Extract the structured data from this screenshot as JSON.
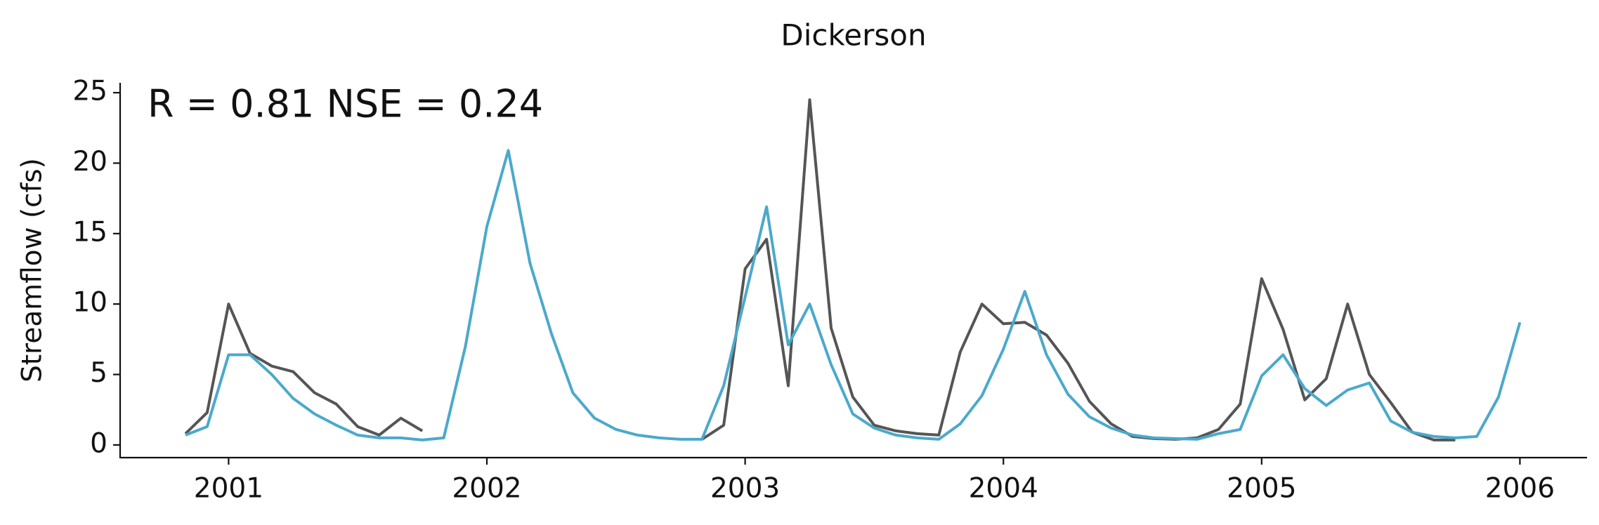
{
  "chart_data": {
    "type": "line",
    "title": "Dickerson",
    "ylabel": "Streamflow (cfs)",
    "annotation": "R = 0.81  NSE = 0.24",
    "x": [
      2000.833,
      2000.917,
      2001.0,
      2001.083,
      2001.167,
      2001.25,
      2001.333,
      2001.417,
      2001.5,
      2001.583,
      2001.667,
      2001.75,
      2001.833,
      2001.917,
      2002.0,
      2002.083,
      2002.167,
      2002.25,
      2002.333,
      2002.417,
      2002.5,
      2002.583,
      2002.667,
      2002.75,
      2002.833,
      2002.917,
      2003.0,
      2003.083,
      2003.167,
      2003.25,
      2003.333,
      2003.417,
      2003.5,
      2003.583,
      2003.667,
      2003.75,
      2003.833,
      2003.917,
      2004.0,
      2004.083,
      2004.167,
      2004.25,
      2004.333,
      2004.417,
      2004.5,
      2004.583,
      2004.667,
      2004.75,
      2004.833,
      2004.917,
      2005.0,
      2005.083,
      2005.167,
      2005.25,
      2005.333,
      2005.417,
      2005.5,
      2005.583,
      2005.667,
      2005.75,
      2005.833,
      2005.917,
      2006.0
    ],
    "series": [
      {
        "color": "#555555",
        "values": [
          0.8,
          2.3,
          10.0,
          6.5,
          5.6,
          5.2,
          3.7,
          2.9,
          1.3,
          0.7,
          1.9,
          1.0,
          null,
          null,
          null,
          null,
          null,
          null,
          null,
          null,
          null,
          null,
          null,
          null,
          0.4,
          1.4,
          12.5,
          14.6,
          4.2,
          24.5,
          8.3,
          3.4,
          1.4,
          1.0,
          0.8,
          0.7,
          6.6,
          10.0,
          8.6,
          8.7,
          7.8,
          5.8,
          3.1,
          1.5,
          0.6,
          0.45,
          0.4,
          0.5,
          1.1,
          2.9,
          11.8,
          8.2,
          3.2,
          4.7,
          10.0,
          5.0,
          3.0,
          0.9,
          0.35,
          0.35,
          null,
          null,
          null
        ]
      },
      {
        "color": "#4ba9cc",
        "values": [
          0.7,
          1.3,
          6.4,
          6.4,
          5.0,
          3.3,
          2.2,
          1.4,
          0.7,
          0.5,
          0.5,
          0.35,
          0.5,
          7.0,
          15.5,
          20.9,
          12.9,
          7.9,
          3.7,
          1.9,
          1.1,
          0.7,
          0.5,
          0.4,
          0.4,
          4.2,
          10.5,
          16.9,
          7.1,
          10.0,
          5.7,
          2.2,
          1.2,
          0.7,
          0.5,
          0.4,
          1.5,
          3.5,
          6.8,
          10.9,
          6.4,
          3.6,
          2.0,
          1.2,
          0.7,
          0.5,
          0.45,
          0.4,
          0.8,
          1.1,
          4.9,
          6.4,
          4.0,
          2.8,
          3.9,
          4.4,
          1.7,
          0.9,
          0.6,
          0.5,
          0.6,
          3.4,
          8.7
        ]
      }
    ],
    "xlim": [
      2000.58,
      2006.26
    ],
    "xticks": [
      2001,
      2002,
      2003,
      2004,
      2005,
      2006
    ],
    "ylim": [
      -0.9,
      25.7
    ],
    "yticks": [
      0,
      5,
      10,
      15,
      20,
      25
    ],
    "grid": false
  }
}
